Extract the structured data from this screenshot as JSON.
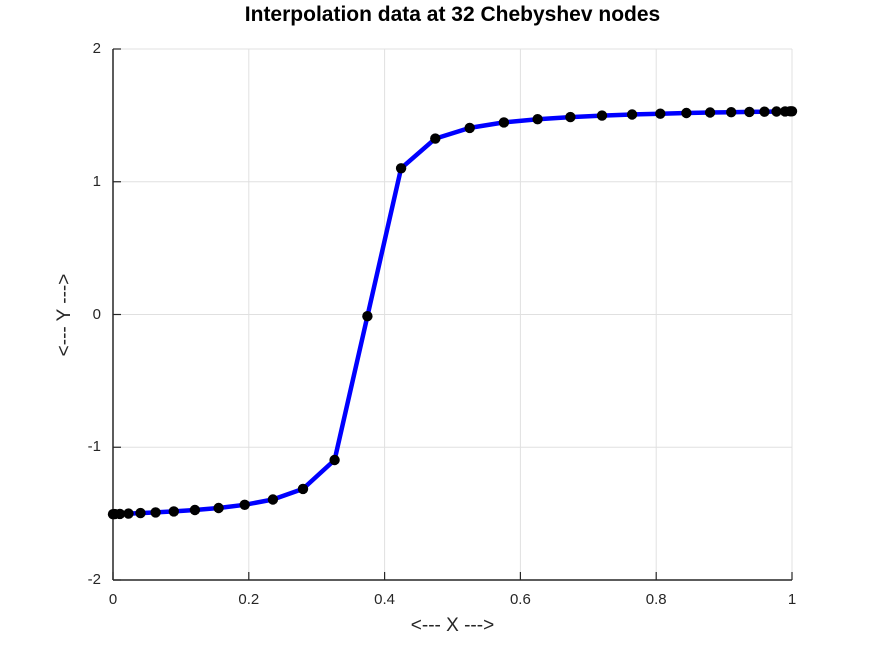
{
  "chart_data": {
    "type": "line",
    "title": "Interpolation data at 32 Chebyshev nodes",
    "xlabel": "<--- X --->",
    "ylabel": "<--- Y --->",
    "xlim": [
      0,
      1
    ],
    "ylim": [
      -2,
      2
    ],
    "grid": true,
    "legend": "none",
    "x_ticks": [
      0,
      0.2,
      0.4,
      0.6,
      0.8,
      1
    ],
    "x_tick_labels": [
      "0",
      "0.2",
      "0.4",
      "0.6",
      "0.8",
      "1"
    ],
    "y_ticks": [
      -2,
      -1,
      0,
      1,
      2
    ],
    "y_tick_labels": [
      "-2",
      "-1",
      "0",
      "1",
      "2"
    ],
    "colors": {
      "line": "#0000FF",
      "marker": "#000000",
      "axis": "#262626",
      "grid": "#E0E0E0",
      "background": "#FFFFFF",
      "title_text": "#000000"
    },
    "line_width": 4.5,
    "marker_size": 10.4,
    "series": [
      {
        "name": "chebyshev-interpolation-data",
        "x": [
          0,
          0.0026,
          0.0102,
          0.0229,
          0.0405,
          0.0628,
          0.0896,
          0.1206,
          0.1555,
          0.1939,
          0.2355,
          0.2798,
          0.3264,
          0.3747,
          0.4243,
          0.4747,
          0.5253,
          0.5757,
          0.6253,
          0.6736,
          0.7202,
          0.7645,
          0.8061,
          0.8445,
          0.8794,
          0.9104,
          0.9372,
          0.9595,
          0.9771,
          0.9898,
          0.9974,
          1.0
        ],
        "y": [
          -1.5042,
          -1.5038,
          -1.5024,
          -1.4999,
          -1.4962,
          -1.4909,
          -1.4834,
          -1.4728,
          -1.4574,
          -1.4335,
          -1.3934,
          -1.3139,
          -1.0961,
          -0.013,
          1.1012,
          1.3251,
          1.406,
          1.4469,
          1.4713,
          1.4873,
          1.4985,
          1.5067,
          1.5129,
          1.5176,
          1.5213,
          1.5241,
          1.5264,
          1.528,
          1.5293,
          1.5301,
          1.5306,
          1.5308
        ]
      }
    ]
  }
}
